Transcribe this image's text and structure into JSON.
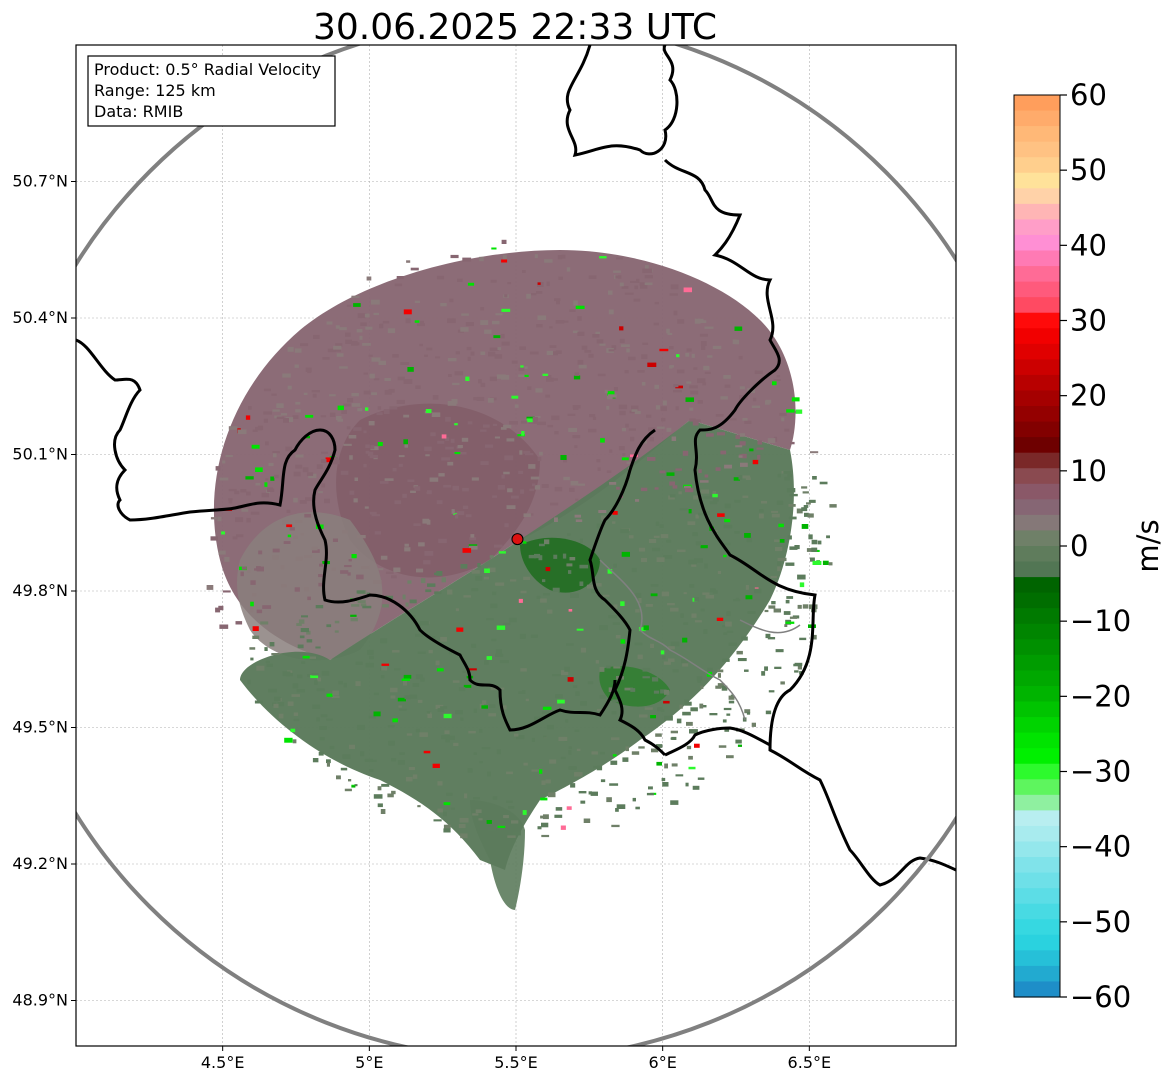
{
  "title": "30.06.2025 22:33 UTC",
  "info_box": {
    "lines": [
      "Product: 0.5° Radial Velocity",
      "Range: 125 km",
      "Data: RMIB"
    ]
  },
  "map": {
    "lon_range": [
      4.0,
      7.0
    ],
    "lat_range": [
      48.8,
      51.0
    ],
    "lon_ticks": [
      {
        "value": 4.5,
        "label": "4.5°E"
      },
      {
        "value": 5.0,
        "label": "5°E"
      },
      {
        "value": 5.5,
        "label": "5.5°E"
      },
      {
        "value": 6.0,
        "label": "6°E"
      },
      {
        "value": 6.5,
        "label": "6.5°E"
      }
    ],
    "lat_ticks": [
      {
        "value": 50.7,
        "label": "50.7°N"
      },
      {
        "value": 50.4,
        "label": "50.4°N"
      },
      {
        "value": 50.1,
        "label": "50.1°N"
      },
      {
        "value": 49.8,
        "label": "49.8°N"
      },
      {
        "value": 49.5,
        "label": "49.5°N"
      },
      {
        "value": 49.2,
        "label": "49.2°N"
      },
      {
        "value": 48.9,
        "label": "48.9°N"
      }
    ],
    "radar_site": {
      "lon": 5.505,
      "lat": 49.914
    },
    "range_ring_km": 125
  },
  "colorbar": {
    "unit": "m/s",
    "range": [
      -60,
      60
    ],
    "ticks": [
      {
        "value": 60,
        "label": "60"
      },
      {
        "value": 50,
        "label": "50"
      },
      {
        "value": 40,
        "label": "40"
      },
      {
        "value": 30,
        "label": "30"
      },
      {
        "value": 20,
        "label": "20"
      },
      {
        "value": 10,
        "label": "10"
      },
      {
        "value": 0,
        "label": "0"
      },
      {
        "value": -10,
        "label": "−10"
      },
      {
        "value": -20,
        "label": "−20"
      },
      {
        "value": -30,
        "label": "−30"
      },
      {
        "value": -40,
        "label": "−40"
      },
      {
        "value": -50,
        "label": "−50"
      },
      {
        "value": -60,
        "label": "−60"
      }
    ],
    "colors_top_to_bottom": [
      "#ff9e5c",
      "#ffab6b",
      "#ffb877",
      "#ffc283",
      "#ffcf8d",
      "#ffe29a",
      "#ffd2a8",
      "#ffb5b5",
      "#ff9ec8",
      "#ff8fd4",
      "#ff7ab4",
      "#ff6b96",
      "#ff5a7c",
      "#ff4a62",
      "#ff0a0a",
      "#f20000",
      "#e00000",
      "#cc0000",
      "#b80000",
      "#a50000",
      "#940000",
      "#820000",
      "#6e0000",
      "#7a2828",
      "#8a4a50",
      "#8a5868",
      "#866674",
      "#857878",
      "#6f8068",
      "#5f7c5c",
      "#527654",
      "#006400",
      "#006e00",
      "#007a00",
      "#008500",
      "#009000",
      "#009c00",
      "#00a800",
      "#00b400",
      "#00c400",
      "#00d400",
      "#00e400",
      "#00f000",
      "#2dfa2d",
      "#5ef55e",
      "#8ff0a0",
      "#b8eef0",
      "#a8ebee",
      "#94e7ec",
      "#80e3ea",
      "#6ee0e8",
      "#5cdde6",
      "#48dae3",
      "#36d8e1",
      "#2ad2df",
      "#26c0d8",
      "#22aad0",
      "#1e8ec8"
    ]
  },
  "palette": {
    "approach_dark": "#2e6e2e",
    "approach_mid": "#5c7c5c",
    "recede_mid": "#886672",
    "recede_light": "#8a7a7a",
    "ring": "#808080",
    "border": "#000000",
    "site_fill": "#dd1111"
  }
}
